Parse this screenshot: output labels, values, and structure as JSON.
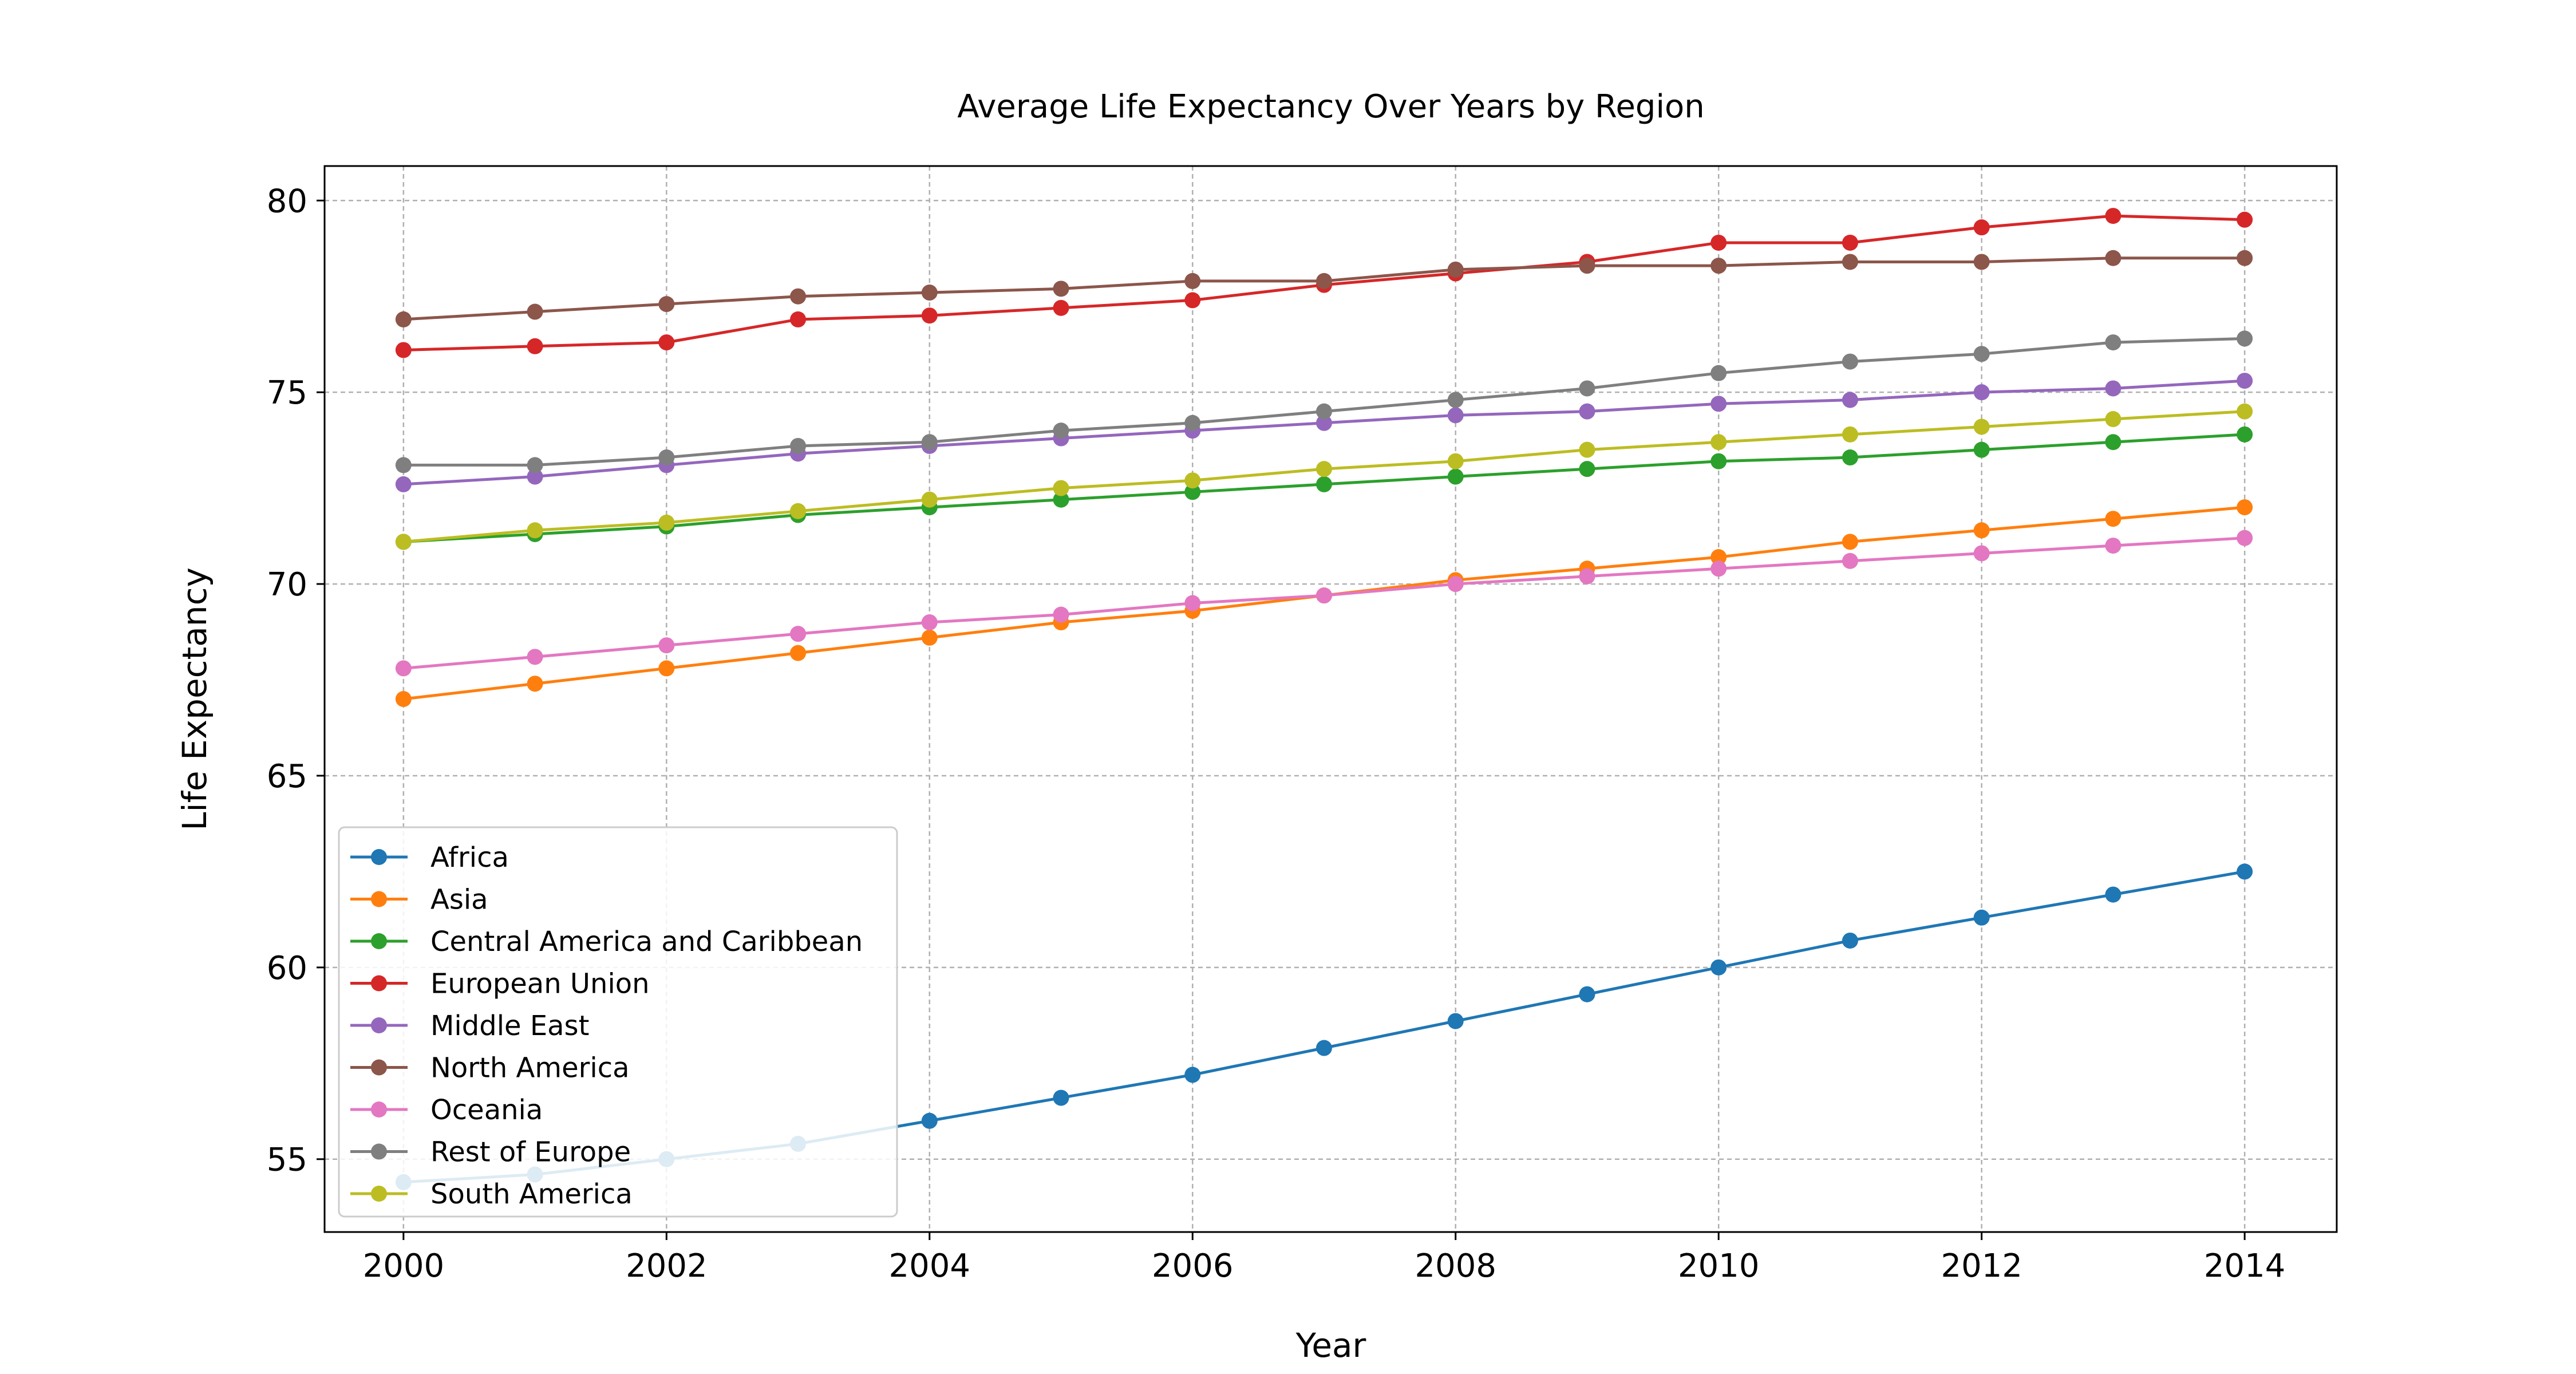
{
  "chart_data": {
    "type": "line",
    "title": "Average Life Expectancy Over Years by Region",
    "xlabel": "Year",
    "ylabel": "Life Expectancy",
    "xlim": [
      1999.4,
      2014.7
    ],
    "ylim": [
      53.1,
      80.9
    ],
    "x_ticks": [
      2000,
      2002,
      2004,
      2006,
      2008,
      2010,
      2012,
      2014
    ],
    "y_ticks": [
      55,
      60,
      65,
      70,
      75,
      80
    ],
    "grid": true,
    "legend_position": "lower-left",
    "x": [
      2000,
      2001,
      2002,
      2003,
      2004,
      2005,
      2006,
      2007,
      2008,
      2009,
      2010,
      2011,
      2012,
      2013,
      2014
    ],
    "series": [
      {
        "name": "Africa",
        "color": "#1f77b4",
        "values": [
          54.4,
          54.6,
          55.0,
          55.4,
          56.0,
          56.6,
          57.2,
          57.9,
          58.6,
          59.3,
          60.0,
          60.7,
          61.3,
          61.9,
          62.5
        ]
      },
      {
        "name": "Asia",
        "color": "#ff7f0e",
        "values": [
          67.0,
          67.4,
          67.8,
          68.2,
          68.6,
          69.0,
          69.3,
          69.7,
          70.1,
          70.4,
          70.7,
          71.1,
          71.4,
          71.7,
          72.0
        ]
      },
      {
        "name": "Central America and Caribbean",
        "color": "#2ca02c",
        "values": [
          71.1,
          71.3,
          71.5,
          71.8,
          72.0,
          72.2,
          72.4,
          72.6,
          72.8,
          73.0,
          73.2,
          73.3,
          73.5,
          73.7,
          73.9
        ]
      },
      {
        "name": "European Union",
        "color": "#d62728",
        "values": [
          76.1,
          76.2,
          76.3,
          76.9,
          77.0,
          77.2,
          77.4,
          77.8,
          78.1,
          78.4,
          78.9,
          78.9,
          79.3,
          79.6,
          79.5
        ]
      },
      {
        "name": "Middle East",
        "color": "#9467bd",
        "values": [
          72.6,
          72.8,
          73.1,
          73.4,
          73.6,
          73.8,
          74.0,
          74.2,
          74.4,
          74.5,
          74.7,
          74.8,
          75.0,
          75.1,
          75.3
        ]
      },
      {
        "name": "North America",
        "color": "#8c564b",
        "values": [
          76.9,
          77.1,
          77.3,
          77.5,
          77.6,
          77.7,
          77.9,
          77.9,
          78.2,
          78.3,
          78.3,
          78.4,
          78.4,
          78.5,
          78.5
        ]
      },
      {
        "name": "Oceania",
        "color": "#e377c2",
        "values": [
          67.8,
          68.1,
          68.4,
          68.7,
          69.0,
          69.2,
          69.5,
          69.7,
          70.0,
          70.2,
          70.4,
          70.6,
          70.8,
          71.0,
          71.2
        ]
      },
      {
        "name": "Rest of Europe",
        "color": "#7f7f7f",
        "values": [
          73.1,
          73.1,
          73.3,
          73.6,
          73.7,
          74.0,
          74.2,
          74.5,
          74.8,
          75.1,
          75.5,
          75.8,
          76.0,
          76.3,
          76.4
        ]
      },
      {
        "name": "South America",
        "color": "#bcbd22",
        "values": [
          71.1,
          71.4,
          71.6,
          71.9,
          72.2,
          72.5,
          72.7,
          73.0,
          73.2,
          73.5,
          73.7,
          73.9,
          74.1,
          74.3,
          74.5
        ]
      }
    ]
  }
}
